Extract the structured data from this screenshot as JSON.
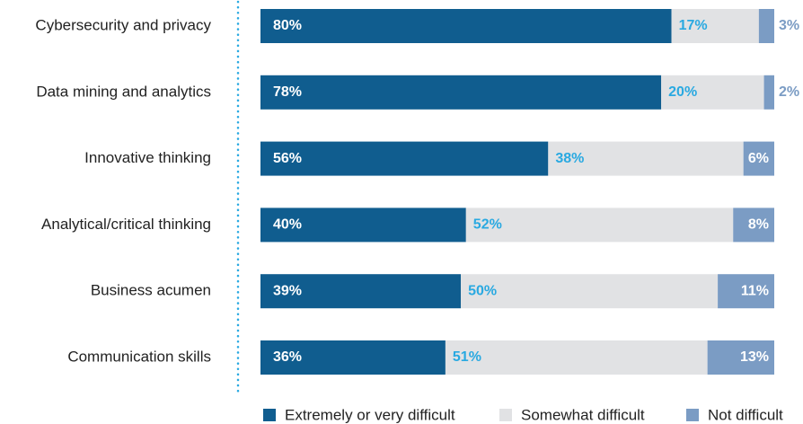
{
  "chart_data": {
    "type": "stacked-bar-horizontal",
    "categories": [
      "Cybersecurity and privacy",
      "Data mining and analytics",
      "Innovative thinking",
      "Analytical/critical thinking",
      "Business acumen",
      "Communication skills"
    ],
    "xlim": [
      0,
      100
    ],
    "series": [
      {
        "name": "Extremely or very difficult",
        "color": "#105d8f",
        "values": [
          80,
          78,
          56,
          40,
          39,
          36
        ],
        "value_labels": [
          "80%",
          "78%",
          "56%",
          "40%",
          "39%",
          "36%"
        ]
      },
      {
        "name": "Somewhat difficult",
        "color": "#e1e2e4",
        "values": [
          17,
          20,
          38,
          52,
          50,
          51
        ],
        "value_labels": [
          "17%",
          "20%",
          "38%",
          "52%",
          "50%",
          "51%"
        ]
      },
      {
        "name": "Not difficult",
        "color": "#7b9cc4",
        "values": [
          3,
          2,
          6,
          8,
          11,
          13
        ],
        "value_labels": [
          "3%",
          "2%",
          "6%",
          "8%",
          "11%",
          "13%"
        ]
      }
    ],
    "legend": "bottom"
  }
}
